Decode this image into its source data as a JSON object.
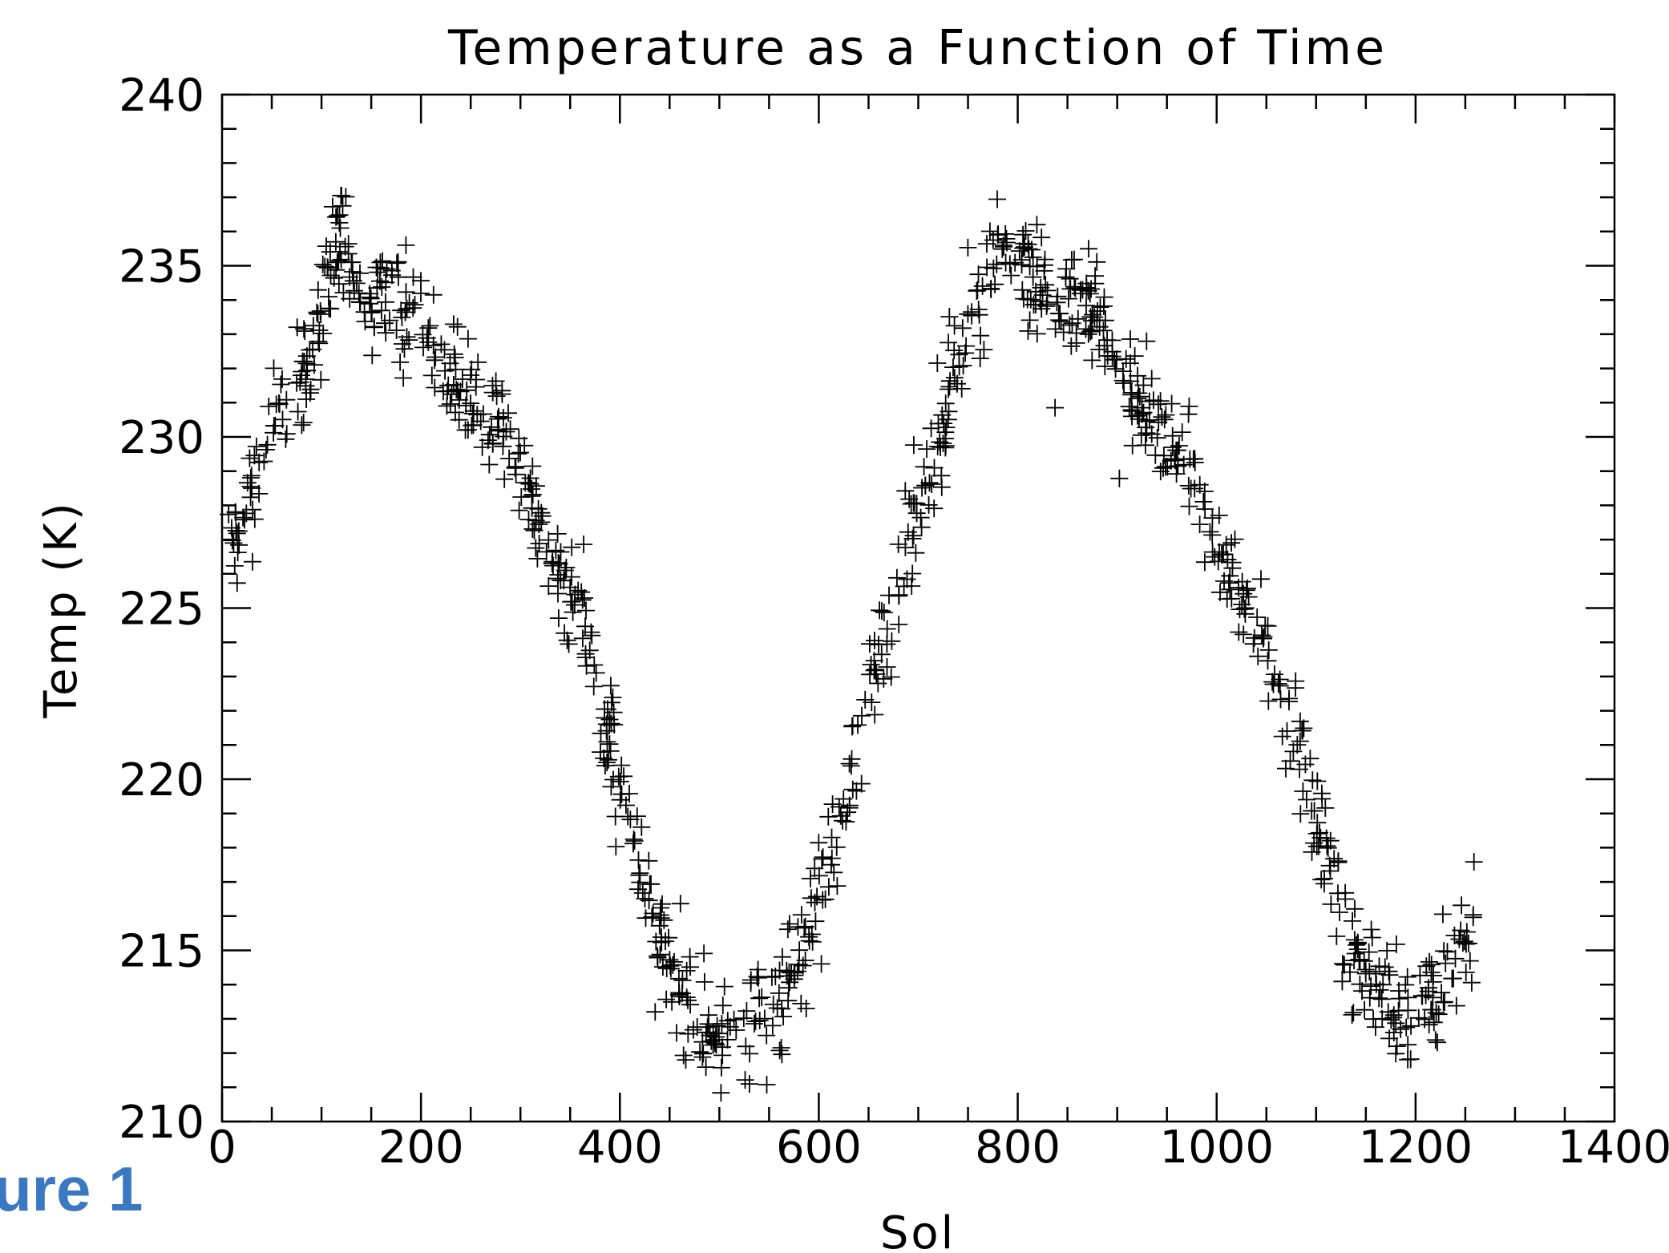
{
  "figure_label": "ure 1",
  "chart_data": {
    "type": "scatter",
    "title": "Temperature as a Function of Time",
    "xlabel": "Sol",
    "ylabel": "Temp (K)",
    "xlim": [
      0,
      1400
    ],
    "ylim": [
      210,
      240
    ],
    "x_ticks": [
      0,
      200,
      400,
      600,
      800,
      1000,
      1200,
      1400
    ],
    "y_ticks": [
      210,
      215,
      220,
      225,
      230,
      235,
      240
    ],
    "x_tick_labels": [
      "0",
      "200",
      "400",
      "600",
      "800",
      "1000",
      "1200",
      "1400"
    ],
    "y_tick_labels": [
      "210",
      "215",
      "220",
      "225",
      "230",
      "235",
      "240"
    ],
    "x_minor_step": 50,
    "y_minor_step": 1,
    "marker": "plus",
    "marker_color": "#000000",
    "grid": false,
    "legend": false,
    "trend_knots": [
      [
        5,
        226.2
      ],
      [
        25,
        228.0
      ],
      [
        50,
        230.5
      ],
      [
        75,
        231.2
      ],
      [
        100,
        233.0
      ],
      [
        115,
        236.0
      ],
      [
        130,
        234.5
      ],
      [
        150,
        234.0
      ],
      [
        180,
        234.2
      ],
      [
        200,
        233.5
      ],
      [
        225,
        232.3
      ],
      [
        260,
        231.0
      ],
      [
        300,
        229.3
      ],
      [
        330,
        226.5
      ],
      [
        360,
        224.8
      ],
      [
        400,
        220.0
      ],
      [
        430,
        216.8
      ],
      [
        460,
        214.0
      ],
      [
        490,
        212.4
      ],
      [
        520,
        212.8
      ],
      [
        560,
        213.4
      ],
      [
        590,
        215.5
      ],
      [
        620,
        218.5
      ],
      [
        650,
        222.5
      ],
      [
        680,
        225.8
      ],
      [
        710,
        229.0
      ],
      [
        740,
        232.0
      ],
      [
        770,
        235.0
      ],
      [
        790,
        235.6
      ],
      [
        820,
        234.5
      ],
      [
        850,
        234.0
      ],
      [
        880,
        233.5
      ],
      [
        910,
        231.5
      ],
      [
        950,
        230.0
      ],
      [
        980,
        229.0
      ],
      [
        1000,
        226.5
      ],
      [
        1030,
        225.0
      ],
      [
        1060,
        222.8
      ],
      [
        1090,
        219.8
      ],
      [
        1110,
        218.0
      ],
      [
        1130,
        215.5
      ],
      [
        1160,
        213.8
      ],
      [
        1190,
        213.0
      ],
      [
        1210,
        213.6
      ],
      [
        1240,
        214.6
      ],
      [
        1260,
        216.0
      ]
    ],
    "n_points": 1100,
    "scatter_spread_k": 0.8
  }
}
